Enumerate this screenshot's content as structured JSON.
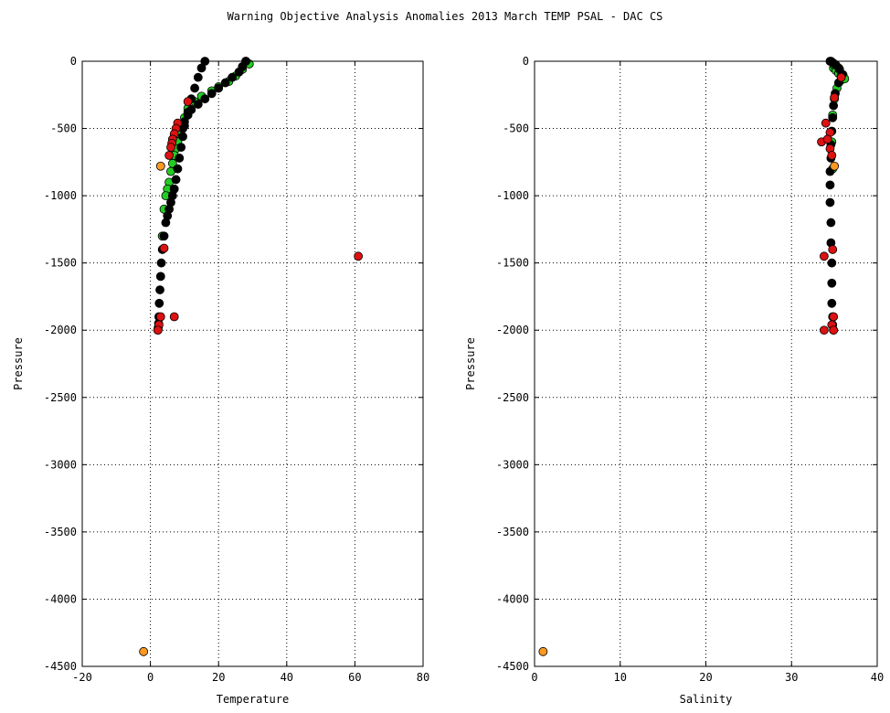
{
  "title": "Warning Objective Analysis Anomalies 2013 March TEMP PSAL - DAC CS",
  "colors": {
    "background": "#ffffff",
    "grid": "#000000",
    "normal_profile": "#000000",
    "climatology": "#22cc22",
    "anomaly_red": "#dd1111",
    "anomaly_orange": "#ff9922"
  },
  "chart_data": [
    {
      "type": "scatter",
      "xlabel": "Temperature",
      "ylabel": "Pressure",
      "xlim": [
        -20,
        80
      ],
      "ylim": [
        -4500,
        0
      ],
      "xticks": [
        -20,
        0,
        20,
        40,
        60,
        80
      ],
      "yticks": [
        -4500,
        -4000,
        -3500,
        -3000,
        -2500,
        -2000,
        -1500,
        -1000,
        -500,
        0
      ],
      "grid": true,
      "series": [
        {
          "color": "#22cc22",
          "x": [
            28,
            29,
            27,
            25,
            23,
            20,
            18,
            15,
            13,
            11,
            10,
            9,
            8.5,
            8,
            7.5,
            7,
            6.5,
            6,
            5.5,
            5,
            4.5,
            4,
            3.5
          ],
          "y": [
            0,
            -20,
            -60,
            -110,
            -150,
            -190,
            -220,
            -260,
            -300,
            -350,
            -420,
            -480,
            -540,
            -600,
            -650,
            -700,
            -760,
            -820,
            -900,
            -950,
            -1000,
            -1100,
            -1300
          ]
        },
        {
          "color": "#000000",
          "x": [
            16,
            15,
            14,
            13,
            12,
            11,
            10,
            9.5,
            9,
            8.5,
            8,
            7.5,
            7,
            6.5,
            6,
            5.5,
            5,
            4.5,
            4,
            3.5,
            3.2,
            3,
            2.8,
            2.6,
            2.5,
            2.4,
            2.3,
            2.2
          ],
          "y": [
            0,
            -50,
            -120,
            -200,
            -280,
            -380,
            -480,
            -560,
            -640,
            -720,
            -800,
            -880,
            -950,
            -1000,
            -1050,
            -1100,
            -1150,
            -1200,
            -1300,
            -1400,
            -1500,
            -1600,
            -1700,
            -1800,
            -1900,
            -1950,
            -1980,
            -2000
          ]
        },
        {
          "color": "#000000",
          "x": [
            28,
            27,
            26,
            24,
            22,
            20,
            18,
            16,
            14,
            12,
            11,
            10,
            9.5
          ],
          "y": [
            0,
            -40,
            -80,
            -120,
            -160,
            -200,
            -240,
            -280,
            -320,
            -360,
            -400,
            -450,
            -500
          ]
        },
        {
          "color": "#dd1111",
          "x": [
            11,
            8,
            7.5,
            7,
            6.5,
            6.3,
            6,
            5.5,
            4,
            61,
            7,
            3,
            2.5,
            2.2
          ],
          "y": [
            -300,
            -460,
            -500,
            -540,
            -580,
            -610,
            -640,
            -700,
            -1390,
            -1450,
            -1900,
            -1900,
            -1960,
            -2000
          ]
        },
        {
          "color": "#ff9922",
          "x": [
            3,
            -2
          ],
          "y": [
            -780,
            -4390
          ]
        }
      ]
    },
    {
      "type": "scatter",
      "xlabel": "Salinity",
      "ylabel": "Pressure",
      "xlim": [
        0,
        40
      ],
      "ylim": [
        -4500,
        0
      ],
      "xticks": [
        0,
        10,
        20,
        30,
        40
      ],
      "yticks": [
        -4500,
        -4000,
        -3500,
        -3000,
        -2500,
        -2000,
        -1500,
        -1000,
        -500,
        0
      ],
      "grid": true,
      "series": [
        {
          "color": "#22cc22",
          "x": [
            34.6,
            35,
            35.5,
            36,
            35.8,
            35.3,
            35,
            34.8,
            34.7,
            34.8,
            34.9,
            35,
            35.2,
            35.5,
            35.8,
            36.2
          ],
          "y": [
            0,
            -20,
            -50,
            -100,
            -140,
            -200,
            -280,
            -400,
            -600,
            -800,
            -50,
            -30,
            -70,
            -90,
            -110,
            -130
          ]
        },
        {
          "color": "#000000",
          "x": [
            34.5,
            34.8,
            35.2,
            35.6,
            35.9,
            35.5,
            35.1,
            34.9,
            34.8,
            34.7,
            34.6,
            34.6,
            34.5,
            34.5,
            34.5,
            34.6,
            34.6,
            34.7,
            34.7,
            34.7,
            34.8,
            34.8,
            34.9
          ],
          "y": [
            0,
            -10,
            -30,
            -60,
            -100,
            -160,
            -240,
            -330,
            -420,
            -520,
            -620,
            -720,
            -820,
            -920,
            -1050,
            -1200,
            -1350,
            -1500,
            -1650,
            -1800,
            -1900,
            -1960,
            -2000
          ]
        },
        {
          "color": "#dd1111",
          "x": [
            35.8,
            35,
            34,
            34.5,
            33.5,
            34.2,
            34.5,
            34.7,
            33.8,
            34.8,
            34.9,
            34.7,
            33.8,
            34.9
          ],
          "y": [
            -120,
            -270,
            -460,
            -530,
            -600,
            -580,
            -650,
            -700,
            -1450,
            -1400,
            -1900,
            -1960,
            -2000,
            -2000
          ]
        },
        {
          "color": "#ff9922",
          "x": [
            35,
            1
          ],
          "y": [
            -780,
            -4390
          ]
        }
      ]
    }
  ]
}
